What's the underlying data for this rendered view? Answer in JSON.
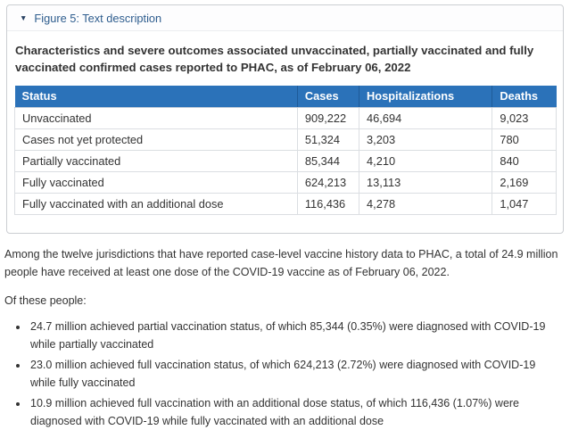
{
  "colors": {
    "table_header_blue": "#2b72b9",
    "header_divider_blue": "#1e5b99",
    "summary_link_blue": "#2e5d8e",
    "body_text": "#333333",
    "box_border": "#cbced2"
  },
  "details": {
    "toggle_icon": "▼",
    "toggle_label": "Figure 5: Text description"
  },
  "chart_data": {
    "type": "table",
    "title": "Characteristics and severe outcomes associated unvaccinated, partially vaccinated and fully vaccinated confirmed cases reported to PHAC, as of February 06, 2022",
    "columns": [
      "Status",
      "Cases",
      "Hospitalizations",
      "Deaths"
    ],
    "rows": [
      [
        "Unvaccinated",
        "909,222",
        "46,694",
        "9,023"
      ],
      [
        "Cases not yet protected",
        "51,324",
        "3,203",
        "780"
      ],
      [
        "Partially vaccinated",
        "85,344",
        "4,210",
        "840"
      ],
      [
        "Fully vaccinated",
        "624,213",
        "13,113",
        "2,169"
      ],
      [
        "Fully vaccinated with an additional dose",
        "116,436",
        "4,278",
        "1,047"
      ]
    ]
  },
  "body": {
    "paragraph1": "Among the twelve jurisdictions that have reported case-level vaccine history data to PHAC, a total of 24.9 million people have received at least one dose of the COVID-19 vaccine as of February 06, 2022.",
    "paragraph2": "Of these people:",
    "bullets": [
      "24.7 million achieved partial vaccination status, of which 85,344 (0.35%) were diagnosed with COVID-19 while partially vaccinated",
      "23.0 million achieved full vaccination status, of which 624,213 (2.72%) were diagnosed with COVID-19 while fully vaccinated",
      "10.9 million achieved full vaccination with an additional dose status, of which 116,436 (1.07%) were diagnosed with COVID-19 while fully vaccinated with an additional dose"
    ]
  }
}
